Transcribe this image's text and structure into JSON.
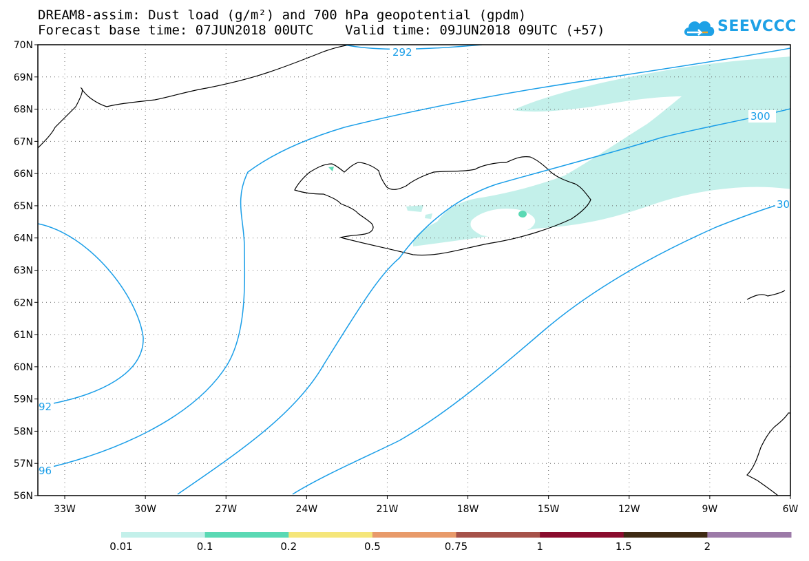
{
  "title": {
    "line1": "DREAM8-assim: Dust load (g/m²) and 700 hPa geopotential (gpdm)",
    "line2": "Forecast base time: 07JUN2018 00UTC    Valid time: 09JUN2018 09UTC (+57)"
  },
  "logo": {
    "text": "SEEVCCC",
    "icon": "cloud-icon",
    "color": "#1ea1e6"
  },
  "map": {
    "lat_labels": [
      "70N",
      "69N",
      "68N",
      "67N",
      "66N",
      "65N",
      "64N",
      "63N",
      "62N",
      "61N",
      "60N",
      "59N",
      "58N",
      "57N",
      "56N"
    ],
    "lon_labels": [
      "33W",
      "30W",
      "27W",
      "24W",
      "21W",
      "18W",
      "15W",
      "12W",
      "9W",
      "6W"
    ],
    "lon_range": [
      -34.0,
      -6.0
    ],
    "lat_range": [
      56.0,
      70.0
    ],
    "grid": "dotted",
    "contour_color": "#1a9ee8",
    "contour_labels": [
      "292",
      "300",
      "30",
      "92",
      "96"
    ]
  },
  "legend": {
    "colors": [
      "#c3f0ea",
      "#5ad9b4",
      "#f5e67a",
      "#e89a6a",
      "#a6524a",
      "#8a0c2e",
      "#3e2a14",
      "#9c7aa8"
    ],
    "labels": [
      "0.01",
      "0.1",
      "0.2",
      "0.5",
      "0.75",
      "1",
      "1.5",
      "2"
    ]
  }
}
